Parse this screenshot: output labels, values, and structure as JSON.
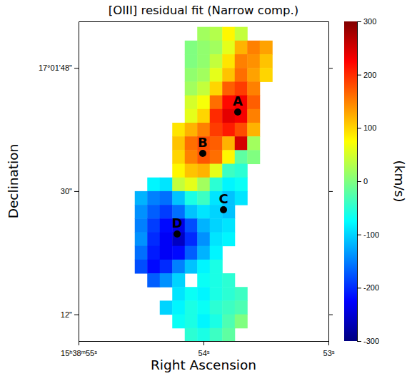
{
  "chart_data": {
    "type": "heatmap",
    "title": "[OIII] residual fit (Narrow comp.)",
    "x_label": "Right Ascension",
    "y_label": "Declination",
    "x": [
      54.7,
      54.6,
      54.5,
      54.4,
      54.3,
      54.2,
      54.1,
      54.0,
      53.9,
      53.8,
      53.7,
      53.6,
      53.5,
      53.4,
      53.3
    ],
    "y": [
      53,
      51,
      49,
      47,
      45,
      43,
      41,
      39,
      37,
      35,
      33,
      31,
      29,
      27,
      25,
      23,
      21,
      19,
      17,
      15,
      13,
      11,
      9
    ],
    "values": [
      [
        null,
        null,
        null,
        null,
        null,
        null,
        null,
        20,
        30,
        80,
        40,
        null,
        null,
        null,
        null
      ],
      [
        null,
        null,
        null,
        null,
        null,
        null,
        0,
        10,
        20,
        60,
        120,
        150,
        130,
        null,
        null
      ],
      [
        null,
        null,
        null,
        null,
        null,
        null,
        0,
        10,
        40,
        90,
        150,
        140,
        110,
        null,
        null
      ],
      [
        null,
        null,
        null,
        null,
        null,
        null,
        10,
        20,
        60,
        110,
        160,
        130,
        100,
        null,
        null
      ],
      [
        null,
        null,
        null,
        null,
        null,
        null,
        20,
        40,
        100,
        170,
        190,
        150,
        null,
        null,
        null
      ],
      [
        null,
        null,
        null,
        null,
        null,
        null,
        50,
        70,
        160,
        220,
        230,
        170,
        null,
        null,
        null
      ],
      [
        null,
        null,
        null,
        null,
        null,
        null,
        60,
        100,
        200,
        240,
        230,
        150,
        null,
        null,
        null
      ],
      [
        null,
        null,
        null,
        null,
        null,
        90,
        120,
        150,
        190,
        210,
        180,
        120,
        null,
        null,
        null
      ],
      [
        null,
        null,
        null,
        null,
        null,
        110,
        160,
        180,
        170,
        120,
        250,
        20,
        null,
        null,
        null
      ],
      [
        null,
        null,
        null,
        null,
        null,
        100,
        150,
        175,
        160,
        80,
        -20,
        0,
        null,
        null,
        null
      ],
      [
        null,
        null,
        null,
        null,
        null,
        80,
        110,
        120,
        60,
        -40,
        -50,
        null,
        null,
        null,
        null
      ],
      [
        null,
        null,
        null,
        -80,
        -90,
        40,
        60,
        20,
        -50,
        -80,
        -70,
        null,
        null,
        null,
        null
      ],
      [
        null,
        null,
        -120,
        -150,
        -160,
        -110,
        -60,
        -40,
        -90,
        -110,
        -90,
        null,
        null,
        null,
        null
      ],
      [
        null,
        null,
        -140,
        -170,
        -190,
        -160,
        -110,
        -90,
        -100,
        -110,
        null,
        null,
        null,
        null,
        null
      ],
      [
        null,
        null,
        -150,
        -190,
        -220,
        -240,
        -180,
        -120,
        -100,
        -90,
        null,
        null,
        null,
        null,
        null
      ],
      [
        null,
        null,
        -140,
        -200,
        -230,
        -260,
        -200,
        -140,
        -90,
        -80,
        null,
        null,
        null,
        null,
        null
      ],
      [
        null,
        null,
        -160,
        -210,
        -230,
        -220,
        -170,
        -120,
        -80,
        null,
        null,
        null,
        null,
        null,
        null
      ],
      [
        null,
        null,
        -180,
        -220,
        -200,
        -150,
        -110,
        -80,
        -60,
        null,
        null,
        null,
        null,
        null,
        null
      ],
      [
        null,
        null,
        null,
        -170,
        -140,
        -100,
        null,
        -70,
        -60,
        -50,
        null,
        null,
        null,
        null,
        null
      ],
      [
        null,
        null,
        null,
        null,
        null,
        -90,
        -70,
        -80,
        -60,
        -50,
        -40,
        null,
        null,
        null,
        null
      ],
      [
        null,
        null,
        null,
        null,
        -100,
        -80,
        -60,
        -70,
        -50,
        -40,
        -30,
        null,
        null,
        null,
        null
      ],
      [
        null,
        null,
        null,
        null,
        null,
        -70,
        -60,
        -80,
        -60,
        -30,
        0,
        null,
        null,
        null,
        null
      ],
      [
        null,
        null,
        null,
        null,
        null,
        null,
        -50,
        -60,
        -40,
        -20,
        null,
        null,
        null,
        null,
        null
      ]
    ],
    "xlim": [
      55,
      53
    ],
    "ylim": [
      8.1,
      54.8
    ],
    "xticks": [
      {
        "value": 55,
        "label": "15ʰ38ᵐ55ˢ"
      },
      {
        "value": 54,
        "label": "54ˢ"
      },
      {
        "value": 53,
        "label": "53ˢ"
      }
    ],
    "yticks": [
      {
        "value": 48,
        "label": "17°01'48\""
      },
      {
        "value": 30,
        "label": "30\""
      },
      {
        "value": 12,
        "label": "12\""
      }
    ],
    "color_label": "(km/s)",
    "color_range": [
      -300,
      300
    ],
    "color_ticks": [
      -300,
      -200,
      -100,
      0,
      100,
      200,
      300
    ],
    "annotations": [
      {
        "text": "A",
        "x": 53.726,
        "y": 41.56
      },
      {
        "text": "B",
        "x": 54.006,
        "y": 35.51
      },
      {
        "text": "C",
        "x": 53.84,
        "y": 27.28
      },
      {
        "text": "D",
        "x": 54.211,
        "y": 23.74
      }
    ]
  }
}
